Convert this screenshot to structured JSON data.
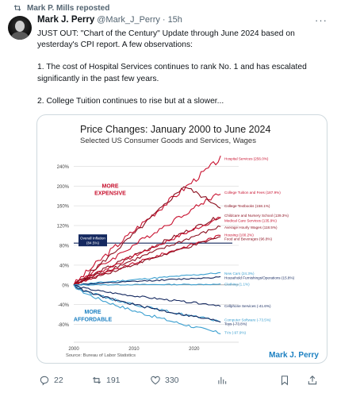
{
  "repost_label": "Mark P. Mills reposted",
  "author": {
    "name": "Mark J. Perry",
    "handle": "@Mark_J_Perry",
    "separator": "·",
    "time": "15h"
  },
  "more_icon": "more-horizontal-icon",
  "tweet": {
    "lines": [
      "JUST OUT: \"Chart of the Century\" Update through June 2024 based on",
      "yesterday's CPI report. A few observations:",
      "",
      "1. The cost of Hospital Services continues to rank No. 1 and has escalated",
      "significantly in the past few years.",
      "",
      "2. College Tuition continues to rise but at a slower..."
    ]
  },
  "chart_data": {
    "type": "line",
    "title": "Price Changes:  January 2000 to June 2024",
    "subtitle": "Selected US Consumer Goods and Services, Wages",
    "ylim": [
      -100,
      260
    ],
    "xlim": [
      2000,
      2024.5
    ],
    "y_ticks": [
      "240%",
      "200%",
      "160%",
      "120%",
      "80%",
      "40%",
      "0%",
      "-40%",
      "-80%"
    ],
    "y_tick_values": [
      240,
      200,
      160,
      120,
      80,
      40,
      0,
      -40,
      -80
    ],
    "x_ticks": [
      "2000",
      "2010",
      "2020"
    ],
    "x_tick_values": [
      2000,
      2010,
      2020
    ],
    "annotations": {
      "more_expensive": [
        "MORE",
        "EXPENSIVE"
      ],
      "more_affordable": [
        "MORE",
        "AFFORDABLE"
      ]
    },
    "overall_inflation": {
      "label": [
        "Overall Inflation",
        "(84.5%)"
      ],
      "value": 84.5
    },
    "source": "Source: Bureau of Labor Statistics",
    "brand": "Mark J. Perry",
    "series": [
      {
        "name": "Hospital Services (256.0%)",
        "value": 256.0,
        "color": "#c8102e",
        "group": "up",
        "label_y": 256,
        "peak": null
      },
      {
        "name": "College Tuition and Fees (187.9%)",
        "value": 187.9,
        "color": "#c8102e",
        "group": "up",
        "label_y": 188,
        "peak": null
      },
      {
        "name": "College Textbooks (158.1%)",
        "value": 158.1,
        "color": "#8b0e1e",
        "group": "up",
        "label_y": 160,
        "peak": 200
      },
      {
        "name": "Childcare and Nursery School (139.3%)",
        "value": 139.3,
        "color": "#8b0e1e",
        "group": "up",
        "label_y": 141,
        "peak": null
      },
      {
        "name": "Medical Care Services (135.9%)",
        "value": 135.9,
        "color": "#c8102e",
        "group": "up",
        "label_y": 131,
        "peak": null
      },
      {
        "name": "Average Hourly Wages (118.5%)",
        "value": 118.5,
        "color": "#8b0e1e",
        "group": "up",
        "label_y": 117,
        "peak": null
      },
      {
        "name": "Housing (100.2%)",
        "value": 100.2,
        "color": "#c8102e",
        "group": "up",
        "label_y": 102,
        "peak": null
      },
      {
        "name": "Food and Beverages (96.8%)",
        "value": 96.8,
        "color": "#8b0e1e",
        "group": "up",
        "label_y": 94,
        "peak": null
      },
      {
        "name": "New Cars (24.3%)",
        "value": 24.3,
        "color": "#3a9fd0",
        "group": "down",
        "label_y": 24,
        "peak": null
      },
      {
        "name": "Household Furnishings/Operations (15.8%)",
        "value": 15.8,
        "color": "#14285f",
        "group": "down",
        "label_y": 15,
        "peak": null
      },
      {
        "name": "Clothing (1.1%)",
        "value": 1.1,
        "color": "#3a9fd0",
        "group": "down",
        "label_y": 2,
        "peak": null
      },
      {
        "name": "Cellphone Services (-41.6%)",
        "value": -41.6,
        "color": "#14285f",
        "group": "down",
        "label_y": -42,
        "peak": null
      },
      {
        "name": "Computer Software (-73.5%)",
        "value": -73.5,
        "color": "#3a9fd0",
        "group": "down",
        "label_y": -70,
        "peak": null
      },
      {
        "name": "Toys (-73.8%)",
        "value": -73.8,
        "color": "#14285f",
        "group": "down",
        "label_y": -78,
        "peak": null
      },
      {
        "name": "TVs (-97.9%)",
        "value": -97.9,
        "color": "#3a9fd0",
        "group": "down",
        "label_y": -96,
        "peak": null
      }
    ],
    "colors": {
      "title": "#1b1b1b",
      "annotation_red": "#c8102e",
      "annotation_blue": "#1a7fc1",
      "inflation_line": "#14285f",
      "brand": "#1a7fc1",
      "grid": "#d8d8d8"
    }
  },
  "actions": {
    "reply": {
      "icon": "reply-icon",
      "count": "22"
    },
    "repost": {
      "icon": "repost-icon",
      "count": "191"
    },
    "like": {
      "icon": "heart-icon",
      "count": "330"
    },
    "views": {
      "icon": "views-icon",
      "count": ""
    },
    "bookmark": {
      "icon": "bookmark-icon",
      "count": ""
    },
    "share": {
      "icon": "share-icon",
      "count": ""
    }
  }
}
